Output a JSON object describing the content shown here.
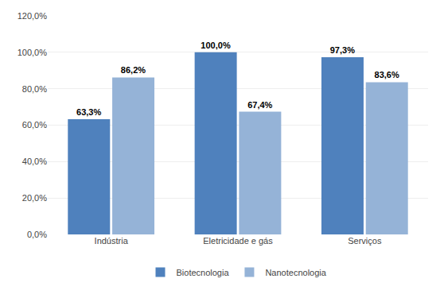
{
  "chart_data": {
    "type": "bar",
    "categories": [
      "Indústria",
      "Eletricidade e gás",
      "Serviços"
    ],
    "series": [
      {
        "name": "Biotecnologia",
        "color": "#4F81BD",
        "values": [
          63.3,
          100.0,
          97.3
        ],
        "value_labels": [
          "63,3%",
          "100,0%",
          "97,3%"
        ]
      },
      {
        "name": "Nanotecnologia",
        "color": "#95B3D7",
        "values": [
          86.2,
          67.4,
          83.6
        ],
        "value_labels": [
          "86,2%",
          "67,4%",
          "83,6%"
        ]
      }
    ],
    "ylim": [
      0,
      120
    ],
    "yticks": [
      {
        "value": 0,
        "label": "0,0%"
      },
      {
        "value": 20,
        "label": "20,0%"
      },
      {
        "value": 40,
        "label": "40,0%"
      },
      {
        "value": 60,
        "label": "60,0%"
      },
      {
        "value": 80,
        "label": "80,0%"
      },
      {
        "value": 100,
        "label": "100,0%"
      },
      {
        "value": 120,
        "label": "120,0%"
      }
    ],
    "grid": true,
    "legend": "bottom",
    "data_labels": true
  }
}
